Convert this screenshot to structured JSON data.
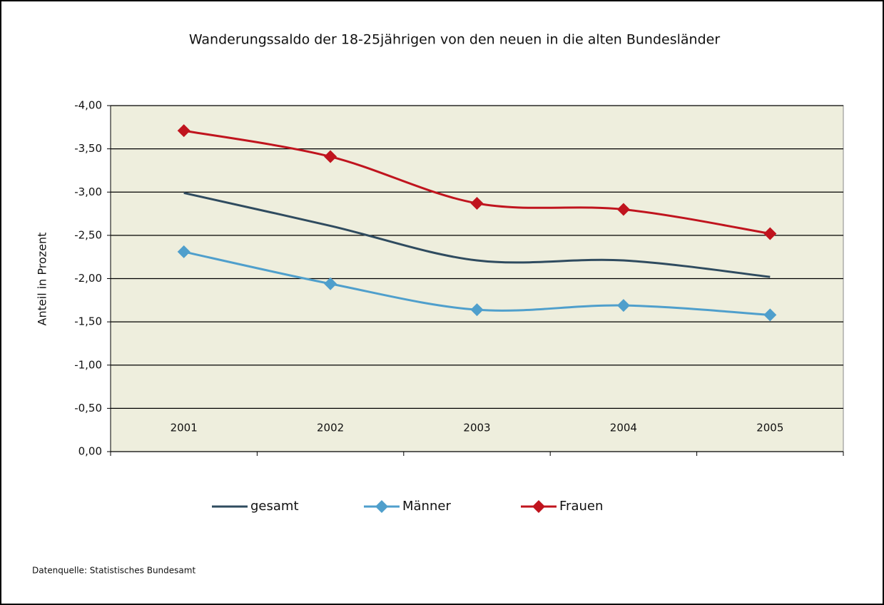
{
  "chart_data": {
    "type": "line",
    "title": "Wanderungssaldo der 18-25jährigen von den neuen in die alten Bundesländer",
    "y_label": "Anteil in Prozent",
    "source": "Datenquelle: Statistisches Bundesamt",
    "categories": [
      "2001",
      "2002",
      "2003",
      "2004",
      "2005"
    ],
    "series": [
      {
        "name": "gesamt",
        "color": "#2f4b5f",
        "values": [
          -2.99,
          -2.61,
          -2.21,
          -2.21,
          -2.02
        ]
      },
      {
        "name": "Männer",
        "color": "#4f9fcc",
        "marker": "diamond",
        "values": [
          -2.31,
          -1.94,
          -1.64,
          -1.69,
          -1.58
        ]
      },
      {
        "name": "Frauen",
        "color": "#c0141e",
        "marker": "diamond",
        "values": [
          -3.71,
          -3.41,
          -2.87,
          -2.8,
          -2.52
        ]
      }
    ],
    "ylim": [
      0,
      -4
    ],
    "yticks": [
      {
        "value": 0,
        "label": "0,00"
      },
      {
        "value": -0.5,
        "label": "-0,50"
      },
      {
        "value": -1,
        "label": "-1,00"
      },
      {
        "value": -1.5,
        "label": "-1,50"
      },
      {
        "value": -2,
        "label": "-2,00"
      },
      {
        "value": -2.5,
        "label": "-2,50"
      },
      {
        "value": -3,
        "label": "-3,00"
      },
      {
        "value": -3.5,
        "label": "-3,50"
      },
      {
        "value": -4,
        "label": "-4,00"
      }
    ],
    "grid": true,
    "smooth": true,
    "legend": "bottom"
  }
}
